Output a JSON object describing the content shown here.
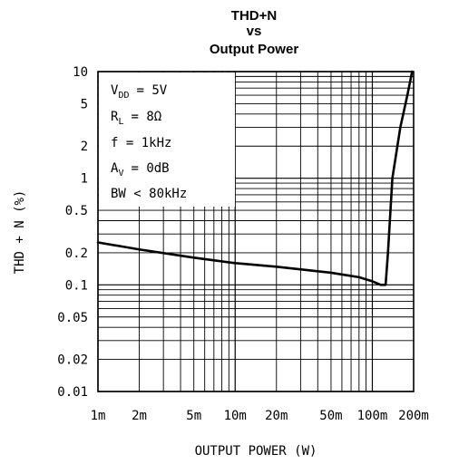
{
  "chart_data": {
    "type": "line",
    "title_lines": [
      "THD+N",
      "vs",
      "Output Power"
    ],
    "xlabel": "OUTPUT POWER (W)",
    "ylabel": "THD + N (%)",
    "x_scale": "log",
    "y_scale": "log",
    "xlim": [
      0.001,
      0.2
    ],
    "ylim": [
      0.01,
      10
    ],
    "x_ticks": [
      {
        "value": 0.001,
        "label": "1m"
      },
      {
        "value": 0.002,
        "label": "2m"
      },
      {
        "value": 0.005,
        "label": "5m"
      },
      {
        "value": 0.01,
        "label": "10m"
      },
      {
        "value": 0.02,
        "label": "20m"
      },
      {
        "value": 0.05,
        "label": "50m"
      },
      {
        "value": 0.1,
        "label": "100m"
      },
      {
        "value": 0.2,
        "label": "200m"
      }
    ],
    "y_ticks": [
      {
        "value": 10,
        "label": "10"
      },
      {
        "value": 5,
        "label": "5"
      },
      {
        "value": 2,
        "label": "2"
      },
      {
        "value": 1,
        "label": "1"
      },
      {
        "value": 0.5,
        "label": "0.5"
      },
      {
        "value": 0.2,
        "label": "0.2"
      },
      {
        "value": 0.1,
        "label": "0.1"
      },
      {
        "value": 0.05,
        "label": "0.05"
      },
      {
        "value": 0.02,
        "label": "0.02"
      },
      {
        "value": 0.01,
        "label": "0.01"
      }
    ],
    "grid": true,
    "conditions": [
      {
        "main": "V",
        "sub": "DD",
        "rest": "= 5V"
      },
      {
        "main": "R",
        "sub": "L",
        "rest": "= 8Ω"
      },
      {
        "main": "f = 1kHz",
        "sub": "",
        "rest": ""
      },
      {
        "main": "A",
        "sub": "V",
        "rest": "= 0dB"
      },
      {
        "main": "BW < 80kHz",
        "sub": "",
        "rest": ""
      }
    ],
    "series": [
      {
        "x": [
          0.001,
          0.002,
          0.005,
          0.01,
          0.02,
          0.05,
          0.08,
          0.1,
          0.115,
          0.125,
          0.13,
          0.14,
          0.16,
          0.18,
          0.195
        ],
        "y": [
          0.25,
          0.215,
          0.18,
          0.16,
          0.148,
          0.13,
          0.118,
          0.108,
          0.1,
          0.1,
          0.2,
          1.0,
          3.0,
          6.0,
          10.0
        ]
      }
    ],
    "colors": {
      "line": "#000000",
      "grid": "#000000"
    }
  }
}
